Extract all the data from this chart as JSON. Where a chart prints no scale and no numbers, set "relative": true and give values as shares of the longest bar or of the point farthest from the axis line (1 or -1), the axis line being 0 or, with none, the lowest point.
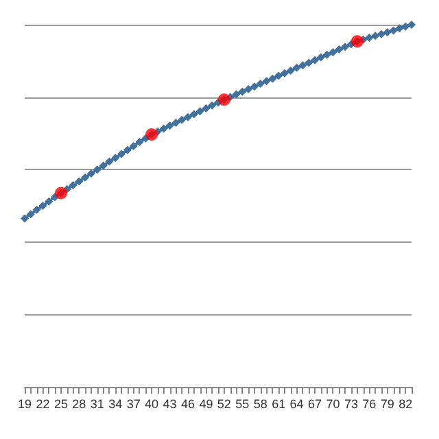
{
  "chart_data": {
    "type": "line",
    "relative": true,
    "grid": "y",
    "marker": "diamond",
    "categories": [
      "19",
      null,
      null,
      "22",
      null,
      null,
      "25",
      null,
      null,
      "28",
      null,
      null,
      "31",
      null,
      null,
      "34",
      null,
      null,
      "37",
      null,
      null,
      "40",
      null,
      null,
      "43",
      null,
      null,
      "46",
      null,
      null,
      "49",
      null,
      null,
      "52",
      null,
      null,
      "55",
      null,
      null,
      "58",
      null,
      null,
      "61",
      null,
      null,
      "64",
      null,
      null,
      "67",
      null,
      null,
      "70",
      null,
      null,
      "73",
      null,
      null,
      "76",
      null,
      null,
      "79",
      null,
      null,
      "82",
      null
    ],
    "series": [
      {
        "color": "#41719c",
        "values": [
          0.465,
          0.477,
          0.489,
          0.5,
          0.512,
          0.524,
          0.535,
          0.546,
          0.557,
          0.567,
          0.578,
          0.589,
          0.6,
          0.611,
          0.622,
          0.632,
          0.643,
          0.654,
          0.665,
          0.676,
          0.686,
          0.697,
          0.705,
          0.713,
          0.721,
          0.729,
          0.737,
          0.745,
          0.753,
          0.761,
          0.769,
          0.777,
          0.785,
          0.793,
          0.8,
          0.808,
          0.815,
          0.822,
          0.829,
          0.837,
          0.844,
          0.851,
          0.859,
          0.866,
          0.873,
          0.881,
          0.888,
          0.895,
          0.902,
          0.91,
          0.917,
          0.924,
          0.932,
          0.939,
          0.946,
          0.954,
          0.959,
          0.964,
          0.969,
          0.974,
          0.979,
          0.984,
          0.99,
          0.995,
          1.0
        ]
      },
      {
        "type": "scatter",
        "marker": "circle",
        "color": "#ff0000",
        "values": [
          null,
          null,
          null,
          null,
          null,
          null,
          0.535,
          null,
          null,
          null,
          null,
          null,
          null,
          null,
          null,
          null,
          null,
          null,
          null,
          null,
          null,
          0.697,
          null,
          null,
          null,
          null,
          null,
          null,
          null,
          null,
          null,
          null,
          null,
          0.793,
          null,
          null,
          null,
          null,
          null,
          null,
          null,
          null,
          null,
          null,
          null,
          null,
          null,
          null,
          null,
          null,
          null,
          null,
          null,
          null,
          null,
          0.954,
          null,
          null,
          null,
          null,
          null,
          null,
          null,
          null,
          null
        ]
      }
    ]
  }
}
